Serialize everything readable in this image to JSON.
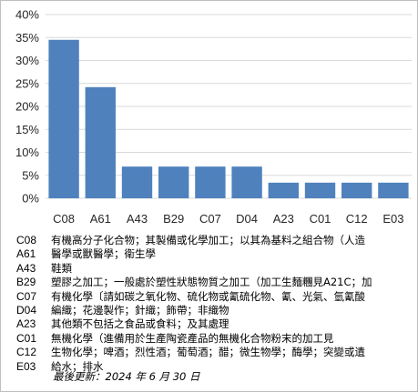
{
  "chart_data": {
    "type": "bar",
    "categories": [
      "C08",
      "A61",
      "A43",
      "B29",
      "C07",
      "D04",
      "A23",
      "C01",
      "C12",
      "E03"
    ],
    "values": [
      34.5,
      24.2,
      6.9,
      6.9,
      6.9,
      6.9,
      3.4,
      3.4,
      3.4,
      3.4
    ],
    "ylim": [
      0,
      40
    ],
    "yticks": [
      0,
      5,
      10,
      15,
      20,
      25,
      30,
      35,
      40
    ],
    "ytick_format": "percent",
    "grid": true,
    "bar_color": "#4F81BD",
    "grid_color": "#D9D9D9"
  },
  "legend": [
    {
      "code": "C08",
      "desc": "有機高分子化合物；其製備或化學加工；以其為基料之組合物（人造"
    },
    {
      "code": "A61",
      "desc": "醫學或獸醫學；衛生學"
    },
    {
      "code": "A43",
      "desc": "鞋類"
    },
    {
      "code": "B29",
      "desc": "塑膠之加工；一般處於塑性狀態物質之加工（加工生麵糰見A21C；加"
    },
    {
      "code": "C07",
      "desc": "有機化學〔請如碳之氧化物、硫化物或氰硫化物、氰、光氣、氫氰酸"
    },
    {
      "code": "D04",
      "desc": "編織；花邊製作；針織；飾帶；非織物"
    },
    {
      "code": "A23",
      "desc": "其他類不包括之食品或食料；及其處理"
    },
    {
      "code": "C01",
      "desc": "無機化學（進備用於生產陶瓷產品的無機化合物粉末的加工見"
    },
    {
      "code": "C12",
      "desc": "生物化學；啤酒；烈性酒；葡萄酒；醋；微生物學；酶學；突變或遺"
    },
    {
      "code": "E03",
      "desc": "給水；排水"
    }
  ],
  "footer": {
    "update_text": "最後更新：2024 年 6 月 30 日"
  }
}
